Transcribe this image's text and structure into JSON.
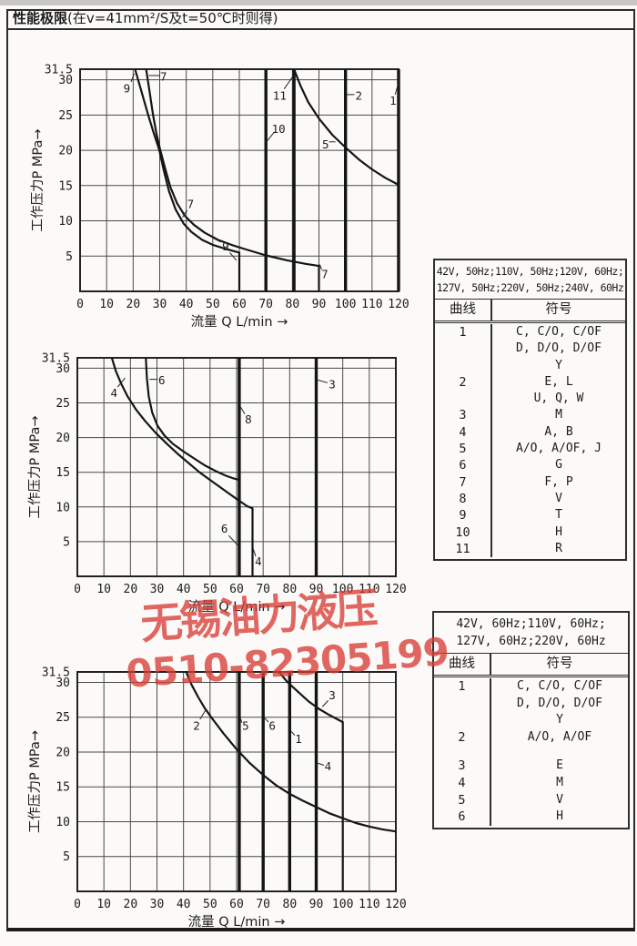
{
  "page": {
    "title_bold": "性能极限",
    "title_rest": "(在v=41mm²/S及t=50℃时则得)"
  },
  "watermark": {
    "company": "无锡油力液压",
    "phone": "0510-82305199",
    "color": "#d93e36"
  },
  "chart_data": [
    {
      "type": "line",
      "title": "",
      "xlabel": "流量 Q L/min →",
      "ylabel": "工作压力P MPa→",
      "xlim": [
        0,
        120
      ],
      "ylim": [
        0,
        31.5
      ],
      "grid": true,
      "x_ticks": [
        0,
        10,
        20,
        30,
        40,
        50,
        60,
        70,
        80,
        90,
        100,
        110,
        120
      ],
      "y_ticks": [
        5,
        10,
        15,
        20,
        25,
        30,
        31.5
      ],
      "curves": [
        {
          "name": "9",
          "thick": false,
          "points": [
            [
              20.7,
              31.5
            ],
            [
              23,
              28.5
            ],
            [
              25.5,
              25.2
            ],
            [
              27.7,
              22.5
            ],
            [
              29.8,
              20.1
            ],
            [
              31.5,
              17.2
            ],
            [
              33.5,
              14.2
            ],
            [
              36,
              11.6
            ],
            [
              39,
              9.6
            ],
            [
              42,
              8.4
            ],
            [
              46,
              7.3
            ],
            [
              50,
              6.6
            ],
            [
              55,
              6
            ],
            [
              60,
              5.5
            ],
            [
              60,
              0
            ]
          ]
        },
        {
          "name": "7",
          "thick": false,
          "points": [
            [
              24.9,
              31.5
            ],
            [
              26.2,
              28.3
            ],
            [
              27.5,
              25
            ],
            [
              28.8,
              22.3
            ],
            [
              30.1,
              20.2
            ],
            [
              32,
              17.5
            ],
            [
              34,
              14.8
            ],
            [
              36.5,
              12.5
            ],
            [
              39.5,
              10.7
            ],
            [
              43,
              9.4
            ],
            [
              47,
              8.3
            ],
            [
              52,
              7.3
            ],
            [
              57,
              6.6
            ],
            [
              62,
              6
            ],
            [
              70,
              5.1
            ],
            [
              78,
              4.4
            ],
            [
              85,
              3.9
            ],
            [
              90,
              3.6
            ],
            [
              90,
              0
            ]
          ]
        },
        {
          "name": "10",
          "thick": true,
          "points": [
            [
              70,
              31.5
            ],
            [
              70,
              0
            ]
          ]
        },
        {
          "name": "11",
          "thick": true,
          "points": [
            [
              80.6,
              31.5
            ],
            [
              80.6,
              0
            ]
          ]
        },
        {
          "name": "5",
          "thick": false,
          "points": [
            [
              80.6,
              31.5
            ],
            [
              83,
              29.2
            ],
            [
              86,
              26.8
            ],
            [
              90,
              24.5
            ],
            [
              95,
              22.2
            ],
            [
              100,
              20.4
            ],
            [
              105,
              18.7
            ],
            [
              110,
              17.3
            ],
            [
              115,
              16.1
            ],
            [
              120,
              15.1
            ]
          ]
        },
        {
          "name": "2",
          "thick": true,
          "points": [
            [
              100,
              31.5
            ],
            [
              100,
              0
            ]
          ]
        },
        {
          "name": "1",
          "thick": true,
          "points": [
            [
              120,
              31.5
            ],
            [
              120,
              0
            ]
          ]
        }
      ],
      "labels": [
        {
          "text": "9",
          "x": 17.6,
          "y": 28.7,
          "leaders": [
            [
              19.2,
              29.7,
              20.4,
              30.9
            ]
          ]
        },
        {
          "text": "7",
          "x": 31.4,
          "y": 30.4,
          "leaders": [
            [
              30.2,
              30.6,
              25.9,
              30.6
            ]
          ]
        },
        {
          "text": "11",
          "x": 75.2,
          "y": 27.7,
          "leaders": [
            [
              76.9,
              28.7,
              80,
              30.4
            ]
          ]
        },
        {
          "text": "10",
          "x": 74.8,
          "y": 23,
          "leaders": [
            [
              73.2,
              22.6,
              70.4,
              21.3
            ]
          ]
        },
        {
          "text": "2",
          "x": 105,
          "y": 27.7,
          "leaders": [
            [
              103.4,
              27.9,
              100.5,
              27.9
            ]
          ]
        },
        {
          "text": "1",
          "x": 117.9,
          "y": 27,
          "leaders": [
            [
              118.7,
              27.9,
              119.8,
              29.3
            ]
          ]
        },
        {
          "text": "5",
          "x": 92.5,
          "y": 20.8,
          "leaders": [
            [
              93.8,
              21.2,
              96.2,
              21.2
            ]
          ]
        },
        {
          "text": "7",
          "x": 41.6,
          "y": 12.3,
          "leaders": [
            [
              40.3,
              11.5,
              38.6,
              10.5
            ]
          ]
        },
        {
          "text": "9",
          "x": 54.8,
          "y": 6.3,
          "leaders": [
            [
              53,
              7,
              49.9,
              7.6
            ],
            [
              56.4,
              5.5,
              58.9,
              4.4
            ]
          ]
        },
        {
          "text": "7",
          "x": 92.2,
          "y": 2.4,
          "leaders": [
            [
              91,
              3.1,
              90.3,
              3.8
            ]
          ]
        }
      ]
    },
    {
      "type": "line",
      "title": "",
      "xlabel": "流量 Q L/min →",
      "ylabel": "工作压力P MPa→",
      "xlim": [
        0,
        120
      ],
      "ylim": [
        0,
        31.5
      ],
      "grid": true,
      "x_ticks": [
        0,
        10,
        20,
        30,
        40,
        50,
        60,
        70,
        80,
        90,
        100,
        110,
        120
      ],
      "y_ticks": [
        5,
        10,
        15,
        20,
        25,
        30,
        31.5
      ],
      "curves": [
        {
          "name": "4",
          "thick": false,
          "points": [
            [
              13,
              31.5
            ],
            [
              14.5,
              29.6
            ],
            [
              16.5,
              27.8
            ],
            [
              19,
              25.9
            ],
            [
              22,
              24.1
            ],
            [
              25.5,
              22.4
            ],
            [
              29.5,
              20.7
            ],
            [
              34,
              19
            ],
            [
              38,
              17.6
            ],
            [
              42,
              16.3
            ],
            [
              46,
              15
            ],
            [
              50,
              13.9
            ],
            [
              54,
              12.8
            ],
            [
              58,
              11.7
            ],
            [
              61,
              10.9
            ],
            [
              64,
              10.1
            ],
            [
              66,
              9.8
            ],
            [
              66,
              0
            ]
          ]
        },
        {
          "name": "6",
          "thick": false,
          "points": [
            [
              25.8,
              31.5
            ],
            [
              26.2,
              28.6
            ],
            [
              26.9,
              25.9
            ],
            [
              28.2,
              23.6
            ],
            [
              30.2,
              21.7
            ],
            [
              32.8,
              20.3
            ],
            [
              36,
              19.1
            ],
            [
              40,
              18
            ],
            [
              44,
              17
            ],
            [
              48,
              16
            ],
            [
              52,
              15.2
            ],
            [
              56,
              14.5
            ],
            [
              59,
              14.1
            ],
            [
              61,
              13.9
            ],
            [
              61,
              0
            ]
          ]
        },
        {
          "name": "8",
          "thick": true,
          "points": [
            [
              61,
              31.5
            ],
            [
              61,
              0
            ]
          ]
        },
        {
          "name": "3",
          "thick": true,
          "points": [
            [
              90,
              31.5
            ],
            [
              90,
              0
            ]
          ]
        }
      ],
      "labels": [
        {
          "text": "4",
          "x": 13.8,
          "y": 26.4,
          "leaders": [
            [
              15.2,
              27.3,
              18,
              28.6
            ]
          ]
        },
        {
          "text": "6",
          "x": 31.8,
          "y": 28.2,
          "leaders": [
            [
              30.3,
              28.4,
              27.2,
              28.4
            ]
          ]
        },
        {
          "text": "8",
          "x": 64.4,
          "y": 22.6,
          "leaders": [
            [
              63.1,
              23.4,
              61.5,
              24.4
            ]
          ]
        },
        {
          "text": "3",
          "x": 96,
          "y": 27.6,
          "leaders": [
            [
              94.3,
              27.9,
              90.6,
              28.3
            ]
          ]
        },
        {
          "text": "6",
          "x": 55.4,
          "y": 6.8,
          "leaders": [
            [
              57,
              5.9,
              60.4,
              4.5
            ]
          ]
        },
        {
          "text": "4",
          "x": 68.2,
          "y": 2.1,
          "leaders": [
            [
              67.2,
              2.9,
              66.2,
              4
            ]
          ]
        }
      ]
    },
    {
      "type": "line",
      "title": "",
      "xlabel": "流量 Q L/min →",
      "ylabel": "工作压力P MPa→",
      "xlim": [
        0,
        120
      ],
      "ylim": [
        0,
        31.5
      ],
      "grid": true,
      "x_ticks": [
        0,
        10,
        20,
        30,
        40,
        50,
        60,
        70,
        80,
        90,
        100,
        110,
        120
      ],
      "y_ticks": [
        5,
        10,
        15,
        20,
        25,
        30,
        31.5
      ],
      "curves": [
        {
          "name": "2",
          "thick": false,
          "points": [
            [
              41,
              31.5
            ],
            [
              43,
              29.7
            ],
            [
              45.5,
              27.9
            ],
            [
              48,
              26.3
            ],
            [
              51,
              24.7
            ],
            [
              55,
              22.7
            ],
            [
              60,
              20.4
            ],
            [
              65,
              18.4
            ],
            [
              70,
              16.7
            ],
            [
              75,
              15.2
            ],
            [
              80,
              14
            ],
            [
              85,
              13
            ],
            [
              90,
              12.1
            ],
            [
              95,
              11.2
            ],
            [
              100,
              10.5
            ],
            [
              105,
              9.8
            ],
            [
              110,
              9.3
            ],
            [
              115,
              8.9
            ],
            [
              120,
              8.6
            ]
          ]
        },
        {
          "name": "3",
          "thick": false,
          "points": [
            [
              76,
              31.5
            ],
            [
              79,
              30.1
            ],
            [
              83,
              28.7
            ],
            [
              87,
              27.3
            ],
            [
              91,
              26.2
            ],
            [
              95,
              25.3
            ],
            [
              100,
              24.3
            ],
            [
              100,
              0
            ]
          ]
        },
        {
          "name": "5",
          "thick": true,
          "points": [
            [
              61,
              31.5
            ],
            [
              61,
              0
            ]
          ]
        },
        {
          "name": "6",
          "thick": true,
          "points": [
            [
              70,
              31.5
            ],
            [
              70,
              0
            ]
          ]
        },
        {
          "name": "1",
          "thick": true,
          "points": [
            [
              80,
              31.5
            ],
            [
              80,
              0
            ]
          ]
        },
        {
          "name": "4",
          "thick": true,
          "points": [
            [
              90,
              31.5
            ],
            [
              90,
              0
            ]
          ]
        }
      ],
      "labels": [
        {
          "text": "2",
          "x": 44.9,
          "y": 23.7,
          "leaders": [
            [
              46.2,
              24.7,
              48.6,
              26.2
            ]
          ]
        },
        {
          "text": "5",
          "x": 63.4,
          "y": 23.7,
          "leaders": [
            [
              62,
              24.2,
              61.4,
              24.9
            ]
          ]
        },
        {
          "text": "6",
          "x": 73.4,
          "y": 23.7,
          "leaders": [
            [
              72,
              24.3,
              70.5,
              24.9
            ]
          ]
        },
        {
          "text": "1",
          "x": 83.3,
          "y": 21.8,
          "leaders": [
            [
              81.9,
              22.4,
              80.5,
              23
            ]
          ]
        },
        {
          "text": "4",
          "x": 94.4,
          "y": 17.9,
          "leaders": [
            [
              92.9,
              18.1,
              90.6,
              18.4
            ]
          ]
        },
        {
          "text": "3",
          "x": 96,
          "y": 28.1,
          "leaders": [
            [
              94.5,
              27.4,
              92.3,
              26.5
            ]
          ]
        }
      ]
    }
  ],
  "tables": [
    {
      "header_lines": [
        "42V, 50Hz;110V, 50Hz;120V, 60Hz;",
        "127V, 50Hz;220V, 50Hz;240V, 60Hz"
      ],
      "col_headers": [
        "曲线",
        "符号"
      ],
      "rows": [
        {
          "curve": "1",
          "symbols": [
            "C, C/O, C/OF",
            "D, D/O, D/OF",
            "Y"
          ]
        },
        {
          "curve": "2",
          "symbols": [
            "E, L",
            "U, Q, W"
          ]
        },
        {
          "curve": "3",
          "symbols": [
            "M"
          ]
        },
        {
          "curve": "4",
          "symbols": [
            "A, B"
          ]
        },
        {
          "curve": "5",
          "symbols": [
            "A/O, A/OF, J"
          ]
        },
        {
          "curve": "6",
          "symbols": [
            "G"
          ]
        },
        {
          "curve": "7",
          "symbols": [
            "F, P"
          ]
        },
        {
          "curve": "8",
          "symbols": [
            "V"
          ]
        },
        {
          "curve": "9",
          "symbols": [
            "T"
          ]
        },
        {
          "curve": "10",
          "symbols": [
            "H"
          ]
        },
        {
          "curve": "11",
          "symbols": [
            "R"
          ]
        }
      ]
    },
    {
      "header_lines": [
        "42V, 60Hz;110V, 60Hz;",
        "127V, 60Hz;220V, 60Hz"
      ],
      "col_headers": [
        "曲线",
        "符号"
      ],
      "rows": [
        {
          "curve": "1",
          "symbols": [
            "C, C/O, C/OF",
            "D, D/O, D/OF",
            "Y"
          ]
        },
        {
          "curve": "2",
          "symbols": [
            "A/O, A/OF"
          ]
        },
        {
          "curve": "",
          "symbols": [
            ""
          ]
        },
        {
          "curve": "3",
          "symbols": [
            "E"
          ]
        },
        {
          "curve": "4",
          "symbols": [
            "M"
          ]
        },
        {
          "curve": "5",
          "symbols": [
            "V"
          ]
        },
        {
          "curve": "6",
          "symbols": [
            "H"
          ]
        }
      ]
    }
  ]
}
